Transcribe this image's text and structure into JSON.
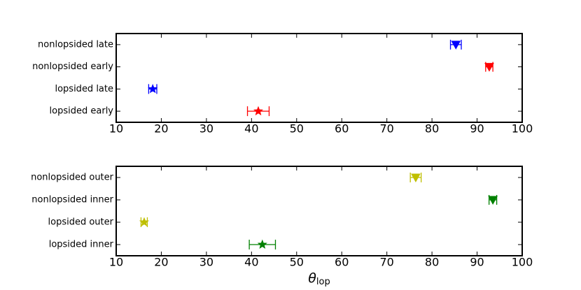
{
  "chart_data": [
    {
      "type": "errorbar",
      "categories": [
        "nonlopsided late",
        "nonlopsided early",
        "lopsided late",
        "lopsided early"
      ],
      "values": [
        85.3,
        92.7,
        18.1,
        41.5
      ],
      "errors": [
        1.2,
        0.8,
        0.9,
        2.4
      ],
      "colors": [
        "#0000ff",
        "#ff0000",
        "#0000ff",
        "#ff0000"
      ],
      "markers": [
        "triangle-down",
        "triangle-down",
        "star",
        "star"
      ],
      "xlim": [
        10,
        100
      ],
      "xticks": [
        10,
        20,
        30,
        40,
        50,
        60,
        70,
        80,
        90,
        100
      ]
    },
    {
      "type": "errorbar",
      "categories": [
        "nonlopsided outer",
        "nonlopsided inner",
        "lopsided outer",
        "lopsided inner"
      ],
      "values": [
        76.4,
        93.5,
        16.2,
        42.4
      ],
      "errors": [
        1.2,
        0.85,
        0.7,
        2.9
      ],
      "colors": [
        "#bfbf00",
        "#008000",
        "#bfbf00",
        "#008000"
      ],
      "markers": [
        "triangle-down",
        "triangle-down",
        "star",
        "star"
      ],
      "xlim": [
        10,
        100
      ],
      "xticks": [
        10,
        20,
        30,
        40,
        50,
        60,
        70,
        80,
        90,
        100
      ],
      "x_label": {
        "symbol": "θ",
        "subscript": "lop"
      }
    }
  ]
}
